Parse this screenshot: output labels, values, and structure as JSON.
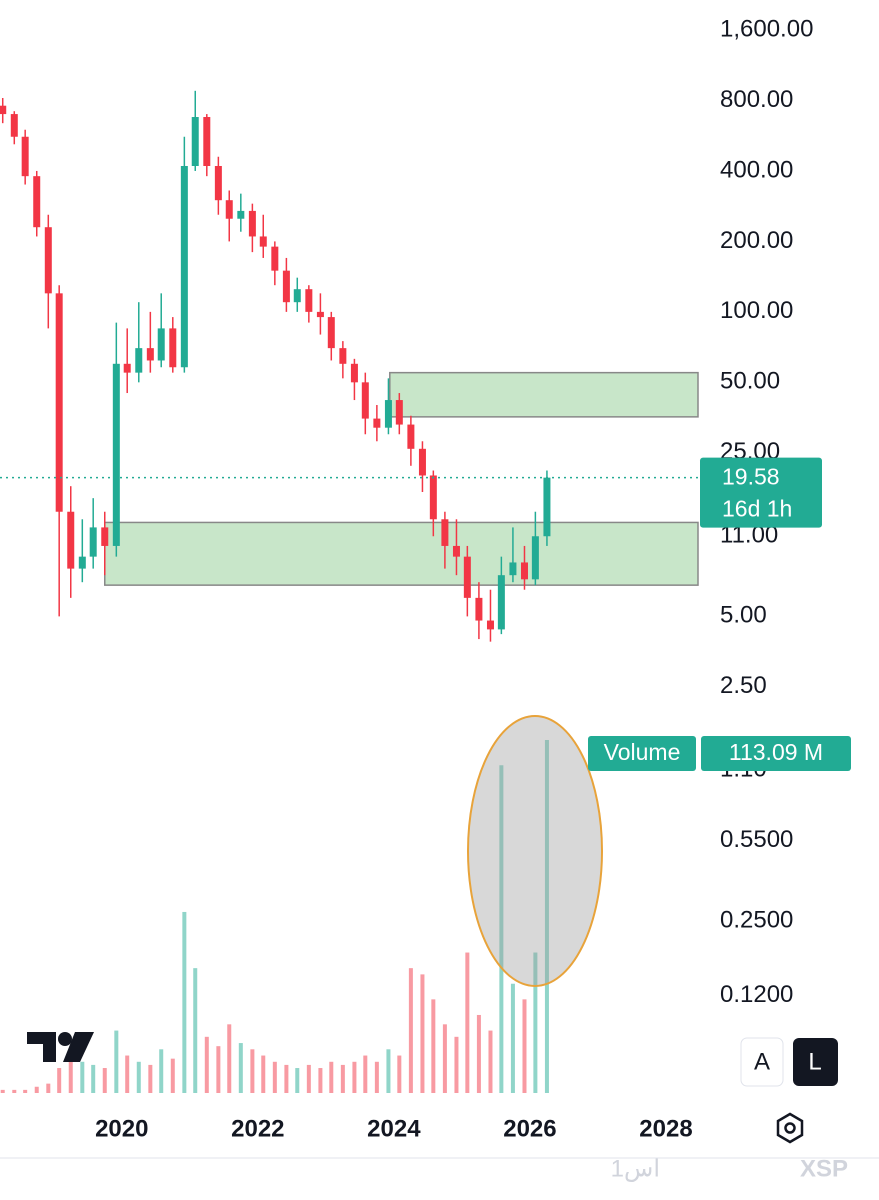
{
  "chart_data": {
    "type": "candlestick",
    "x": [
      2018.25,
      2018.42,
      2018.58,
      2018.75,
      2018.92,
      2019.08,
      2019.25,
      2019.42,
      2019.58,
      2019.75,
      2019.92,
      2020.08,
      2020.25,
      2020.42,
      2020.58,
      2020.75,
      2020.92,
      2021.08,
      2021.25,
      2021.42,
      2021.58,
      2021.75,
      2021.92,
      2022.08,
      2022.25,
      2022.42,
      2022.58,
      2022.75,
      2022.92,
      2023.08,
      2023.25,
      2023.42,
      2023.58,
      2023.75,
      2023.92,
      2024.08,
      2024.25,
      2024.42,
      2024.58,
      2024.75,
      2024.92,
      2025.08,
      2025.25,
      2025.42,
      2025.58,
      2025.75,
      2025.92,
      2026.08,
      2026.25
    ],
    "open": [
      760,
      700,
      560,
      380,
      230,
      120,
      14,
      8,
      9,
      12,
      10,
      60,
      55,
      70,
      62,
      85,
      58,
      420,
      680,
      420,
      300,
      250,
      270,
      210,
      190,
      150,
      110,
      125,
      100,
      95,
      70,
      60,
      50,
      35,
      32,
      42,
      33,
      26,
      20,
      13,
      10,
      9,
      6,
      4.8,
      4.4,
      7.5,
      8.5,
      7.2,
      11
    ],
    "high": [
      820,
      720,
      600,
      400,
      260,
      130,
      18,
      13,
      16,
      14,
      90,
      85,
      110,
      100,
      120,
      95,
      560,
      880,
      700,
      460,
      330,
      320,
      290,
      260,
      200,
      170,
      140,
      130,
      120,
      100,
      75,
      63,
      55,
      40,
      52,
      45,
      36,
      28,
      21,
      14,
      13,
      10,
      7,
      6.5,
      9,
      12,
      10,
      14,
      21
    ],
    "low": [
      640,
      520,
      350,
      210,
      85,
      5,
      6,
      7,
      8,
      7.5,
      9,
      45,
      50,
      55,
      58,
      55,
      55,
      400,
      380,
      260,
      200,
      220,
      180,
      170,
      130,
      100,
      100,
      90,
      80,
      62,
      52,
      42,
      30,
      28,
      30,
      30,
      22,
      17,
      11,
      8,
      7.5,
      5,
      4,
      3.9,
      4.2,
      7,
      6.5,
      6.8,
      10
    ],
    "close": [
      700,
      560,
      380,
      230,
      120,
      14,
      8,
      9,
      12,
      10,
      60,
      55,
      70,
      62,
      85,
      58,
      420,
      680,
      420,
      300,
      250,
      270,
      210,
      190,
      150,
      110,
      125,
      100,
      95,
      70,
      60,
      50,
      35,
      32,
      42,
      33,
      26,
      20,
      13,
      10,
      9,
      6,
      4.8,
      4.4,
      7.5,
      8.5,
      7.2,
      11,
      19.58
    ],
    "up_color": "#22ab94",
    "down_color": "#f23645",
    "countdown": "16d 1h",
    "volume": {
      "name": "Volume",
      "value_label": "113.09 M",
      "values": [
        1,
        1,
        1,
        2,
        3,
        8,
        12,
        10,
        9,
        8,
        20,
        12,
        10,
        9,
        14,
        11,
        58,
        40,
        18,
        15,
        22,
        16,
        14,
        12,
        10,
        9,
        8,
        9,
        8,
        10,
        9,
        10,
        12,
        10,
        14,
        12,
        40,
        38,
        30,
        22,
        18,
        45,
        25,
        20,
        105,
        35,
        30,
        45,
        113.09
      ]
    },
    "zones": [
      {
        "x0": 2023.94,
        "top": 55,
        "bottom": 35.6
      },
      {
        "x0": 2019.75,
        "top": 12.6,
        "bottom": 6.8
      }
    ],
    "ylog": true,
    "ylim": [
      0.046,
      2150
    ],
    "yticks": [
      {
        "value": 1600,
        "label": "1,600.00"
      },
      {
        "value": 800,
        "label": "800.00"
      },
      {
        "value": 400,
        "label": "400.00"
      },
      {
        "value": 200,
        "label": "200.00"
      },
      {
        "value": 100,
        "label": "100.00"
      },
      {
        "value": 50,
        "label": "50.00"
      },
      {
        "value": 25,
        "label": "25.00"
      },
      {
        "value": 11,
        "label": "11.00"
      },
      {
        "value": 5,
        "label": "5.00"
      },
      {
        "value": 2.5,
        "label": "2.50"
      },
      {
        "value": 1.1,
        "label": "1.10"
      },
      {
        "value": 0.55,
        "label": "0.5500"
      },
      {
        "value": 0.25,
        "label": "0.2500"
      },
      {
        "value": 0.12,
        "label": "0.1200"
      }
    ],
    "xlim": [
      2018.21,
      2028.5
    ],
    "xticks": [
      2020,
      2022,
      2024,
      2026,
      2028
    ]
  },
  "ui": {
    "auto_button": "A",
    "log_button": "L",
    "watermark": "XSP",
    "footer_text": "1اس"
  }
}
